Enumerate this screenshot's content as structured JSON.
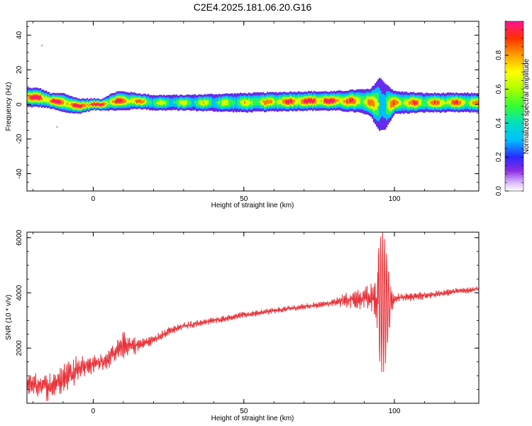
{
  "title": "C2E4.2025.181.06.20.G16",
  "chart_data": [
    {
      "type": "heatmap",
      "xlabel": "Height of straight line (km)",
      "ylabel": "Frequency (Hz)",
      "xlim": [
        -22,
        128
      ],
      "ylim": [
        -50,
        48
      ],
      "xticks": [
        0,
        50,
        100
      ],
      "yticks": [
        -40,
        -20,
        0,
        20,
        40
      ],
      "xticklabels": [
        "0",
        "50",
        "100"
      ],
      "yticklabels": [
        "-40",
        "-20",
        "0",
        "20",
        "40"
      ],
      "colorbar": {
        "label": "Normalized spectral amplitude",
        "ticks": [
          0.0,
          0.2,
          0.4,
          0.6,
          0.8
        ],
        "ticklabels": [
          "0.0",
          "0.2",
          "0.4",
          "0.6",
          "0.8"
        ],
        "range": [
          0,
          1
        ]
      },
      "ridge": {
        "x": [
          -22,
          -18,
          -14,
          -10,
          -5,
          0,
          3,
          5,
          8,
          10,
          15,
          20,
          30,
          50,
          70,
          80,
          88,
          92,
          95,
          97,
          100,
          110,
          120,
          128
        ],
        "freq": [
          4,
          4,
          2,
          1,
          -1,
          0,
          0,
          1,
          2,
          2,
          2,
          1,
          1,
          1,
          2,
          2,
          2,
          1,
          0,
          -1,
          1,
          1,
          1,
          1
        ],
        "width": [
          5,
          5,
          4,
          5,
          4,
          3,
          3,
          4,
          5,
          5,
          4,
          4,
          4,
          5,
          5,
          5,
          6,
          7,
          14,
          12,
          6,
          5,
          5,
          5
        ],
        "peak": [
          0.9,
          0.9,
          0.9,
          0.95,
          0.9,
          1.0,
          0.95,
          0.8,
          0.9,
          0.85,
          0.8,
          0.55,
          0.55,
          0.6,
          0.95,
          0.9,
          0.8,
          0.75,
          0.6,
          0.5,
          0.8,
          0.75,
          0.8,
          0.7
        ]
      },
      "outliers": [
        {
          "x": -17,
          "freq": 34
        },
        {
          "x": -12,
          "freq": -13
        },
        {
          "x": 126,
          "freq": 3
        }
      ]
    },
    {
      "type": "line",
      "xlabel": "Height of straight line (km)",
      "ylabel": "SNR (10 * v/v)",
      "xlim": [
        -22,
        128
      ],
      "ylim": [
        0,
        6200
      ],
      "xticks": [
        0,
        50,
        100
      ],
      "yticks": [
        2000,
        4000,
        6000
      ],
      "xticklabels": [
        "0",
        "50",
        "100"
      ],
      "yticklabels": [
        "2000",
        "4000",
        "6000"
      ],
      "color": "#e8333a",
      "trend": {
        "x": [
          -22,
          -15,
          -10,
          -5,
          0,
          5,
          10,
          15,
          20,
          25,
          30,
          40,
          50,
          60,
          70,
          80,
          85,
          90,
          93,
          95,
          97,
          100,
          110,
          120,
          128
        ],
        "y": [
          700,
          600,
          900,
          1300,
          1400,
          1600,
          2100,
          2100,
          2300,
          2600,
          2800,
          3000,
          3200,
          3350,
          3500,
          3650,
          3750,
          3800,
          3800,
          3700,
          3600,
          3800,
          3900,
          4050,
          4150
        ]
      },
      "noise": {
        "x": [
          -22,
          -15,
          -10,
          -5,
          0,
          5,
          10,
          15,
          20,
          30,
          50,
          80,
          85,
          90,
          93,
          95,
          96,
          97,
          98,
          100,
          110,
          128
        ],
        "y": [
          350,
          450,
          500,
          450,
          300,
          300,
          450,
          250,
          150,
          120,
          100,
          100,
          300,
          350,
          500,
          1600,
          1900,
          1600,
          900,
          150,
          120,
          100
        ]
      }
    }
  ]
}
